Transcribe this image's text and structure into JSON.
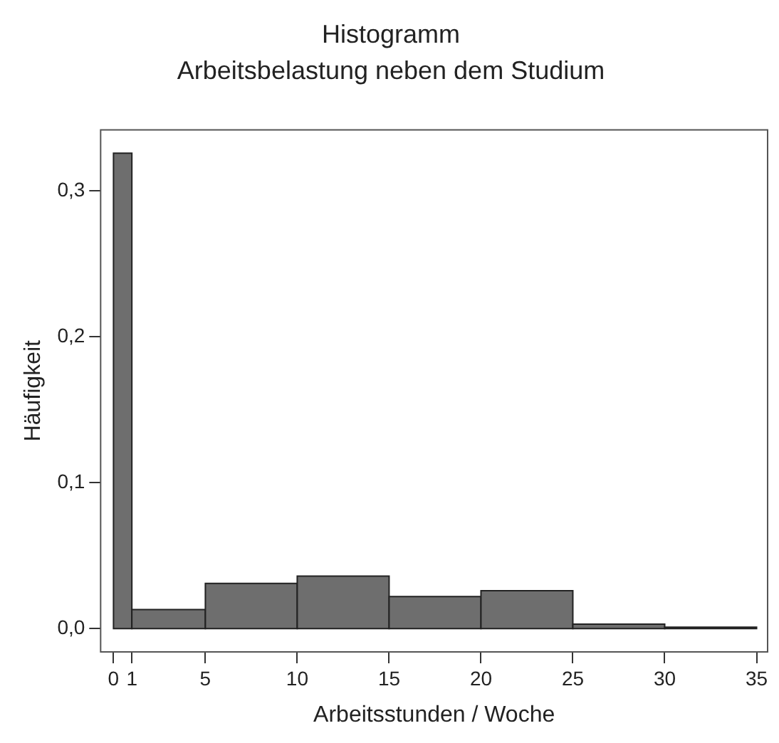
{
  "chart_data": {
    "type": "histogram",
    "title": "Histogramm",
    "subtitle": "Arbeitsbelastung neben dem Studium",
    "xlabel": "Arbeitsstunden / Woche",
    "ylabel": "Häufigkeit",
    "bins": [
      0,
      1,
      5,
      10,
      15,
      20,
      25,
      30,
      35
    ],
    "values": [
      0.326,
      0.013,
      0.031,
      0.036,
      0.022,
      0.026,
      0.003,
      0.001
    ],
    "color": "#6e6e6e",
    "xlim": [
      -0.7,
      35.6
    ],
    "xticks": [
      0,
      1,
      5,
      10,
      15,
      20,
      25,
      30,
      35
    ],
    "ylim": [
      -0.016,
      0.342
    ],
    "yticks": [
      {
        "value": 0,
        "label": "0,0"
      },
      {
        "value": 0.1,
        "label": "0,1"
      },
      {
        "value": 0.2,
        "label": "0,2"
      },
      {
        "value": 0.3,
        "label": "0,3"
      }
    ],
    "grid": false,
    "legend": false
  }
}
